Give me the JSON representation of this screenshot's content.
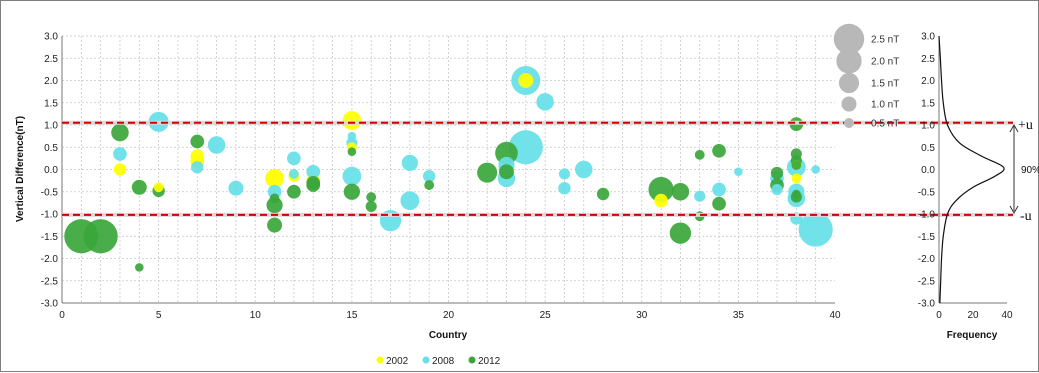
{
  "chart_data": [
    {
      "type": "scatter",
      "xlabel": "Country",
      "ylabel": "Vertical Difference(nT)",
      "xlim": [
        0,
        40
      ],
      "ylim": [
        -3.0,
        3.0
      ],
      "x_ticks": [
        "0",
        "5",
        "10",
        "15",
        "20",
        "25",
        "30",
        "35",
        "40"
      ],
      "y_ticks": [
        "3.0",
        "2.5",
        "2.0",
        "1.5",
        "1.0",
        "0.5",
        "0.0",
        "-0.5",
        "-1.0",
        "-1.5",
        "-2.0",
        "-2.5",
        "-3.0"
      ],
      "grid": true,
      "threshold_lines": [
        1.05,
        -1.02
      ],
      "legend_position": "bottom",
      "size_legend": [
        {
          "label": "2.5 nT",
          "size": 2.5
        },
        {
          "label": "2.0 nT",
          "size": 2.0
        },
        {
          "label": "1.5 nT",
          "size": 1.5
        },
        {
          "label": "1.0 nT",
          "size": 1.0
        },
        {
          "label": "0.5 nT",
          "size": 0.5
        }
      ],
      "series": [
        {
          "name": "2002",
          "color": "#ffff00",
          "points": [
            [
              3,
              0.0,
              0.5
            ],
            [
              5,
              -0.4,
              0.3
            ],
            [
              7,
              0.3,
              0.6
            ],
            [
              7,
              0.18,
              0.6
            ],
            [
              11,
              -0.2,
              1.0
            ],
            [
              11,
              -0.15,
              0.3
            ],
            [
              12,
              -0.15,
              0.4
            ],
            [
              13,
              -0.25,
              0.6
            ],
            [
              15,
              1.1,
              1.0
            ],
            [
              15,
              0.5,
              0.3
            ],
            [
              24,
              2.0,
              0.7
            ],
            [
              31,
              -0.7,
              0.6
            ],
            [
              38,
              0.1,
              0.3
            ],
            [
              38,
              -0.2,
              0.3
            ]
          ]
        },
        {
          "name": "2008",
          "color": "#66e0e8",
          "points": [
            [
              3,
              0.35,
              0.6
            ],
            [
              5,
              1.07,
              1.1
            ],
            [
              7,
              0.05,
              0.5
            ],
            [
              8,
              0.55,
              0.9
            ],
            [
              9,
              -0.42,
              0.7
            ],
            [
              11,
              -0.5,
              0.6
            ],
            [
              12,
              0.25,
              0.6
            ],
            [
              12,
              -0.1,
              0.3
            ],
            [
              13,
              -0.05,
              0.6
            ],
            [
              15,
              -0.15,
              1.0
            ],
            [
              15,
              0.6,
              0.4
            ],
            [
              15,
              0.75,
              0.2
            ],
            [
              17,
              -1.15,
              1.2
            ],
            [
              18,
              0.15,
              0.8
            ],
            [
              18,
              -0.7,
              1.0
            ],
            [
              19,
              -0.15,
              0.5
            ],
            [
              23,
              0.1,
              0.8
            ],
            [
              23,
              -0.2,
              0.9
            ],
            [
              24,
              2.0,
              1.8
            ],
            [
              24,
              0.5,
              2.2
            ],
            [
              25,
              1.52,
              0.9
            ],
            [
              26,
              -0.1,
              0.4
            ],
            [
              26,
              -0.42,
              0.5
            ],
            [
              27,
              0.0,
              0.9
            ],
            [
              33,
              -0.6,
              0.4
            ],
            [
              34,
              -0.45,
              0.6
            ],
            [
              35,
              -0.05,
              0.2
            ],
            [
              37,
              -0.2,
              0.6
            ],
            [
              37,
              -0.45,
              0.4
            ],
            [
              38,
              0.05,
              1.0
            ],
            [
              38,
              -0.5,
              0.8
            ],
            [
              38,
              -0.65,
              0.9
            ],
            [
              38,
              -1.1,
              0.5
            ],
            [
              39,
              0.0,
              0.2
            ],
            [
              39,
              -1.35,
              2.2
            ]
          ]
        },
        {
          "name": "2012",
          "color": "#3aa63a",
          "points": [
            [
              1,
              -1.5,
              2.2
            ],
            [
              2,
              -1.5,
              2.2
            ],
            [
              3,
              0.83,
              0.9
            ],
            [
              4,
              -0.4,
              0.7
            ],
            [
              4,
              -2.2,
              0.2
            ],
            [
              5,
              -0.48,
              0.5
            ],
            [
              7,
              0.63,
              0.6
            ],
            [
              11,
              -0.8,
              0.8
            ],
            [
              11,
              -1.25,
              0.7
            ],
            [
              11,
              -0.65,
              0.3
            ],
            [
              12,
              -0.5,
              0.6
            ],
            [
              13,
              -0.3,
              0.6
            ],
            [
              13,
              -0.35,
              0.6
            ],
            [
              15,
              -0.5,
              0.8
            ],
            [
              15,
              0.4,
              0.2
            ],
            [
              16,
              -0.62,
              0.3
            ],
            [
              16,
              -0.83,
              0.4
            ],
            [
              19,
              -0.35,
              0.3
            ],
            [
              22,
              -0.07,
              1.1
            ],
            [
              23,
              0.37,
              1.3
            ],
            [
              23,
              -0.05,
              0.7
            ],
            [
              28,
              -0.55,
              0.5
            ],
            [
              31,
              -0.45,
              1.5
            ],
            [
              32,
              -0.5,
              0.9
            ],
            [
              32,
              -1.43,
              1.2
            ],
            [
              33,
              0.33,
              0.3
            ],
            [
              33,
              -1.05,
              0.3
            ],
            [
              34,
              0.42,
              0.6
            ],
            [
              34,
              -0.77,
              0.6
            ],
            [
              37,
              -0.08,
              0.5
            ],
            [
              37,
              -0.35,
              0.6
            ],
            [
              38,
              1.02,
              0.6
            ],
            [
              38,
              0.35,
              0.4
            ],
            [
              38,
              0.2,
              0.4
            ],
            [
              38,
              0.1,
              0.3
            ],
            [
              38,
              -0.55,
              0.2
            ],
            [
              38,
              -0.62,
              0.4
            ]
          ]
        }
      ]
    },
    {
      "type": "line",
      "xlabel": "Frequency",
      "xlim": [
        0,
        40
      ],
      "ylim": [
        -3.0,
        3.0
      ],
      "x_ticks": [
        "0",
        "20",
        "40"
      ],
      "y_ticks": [
        "3.0",
        "2.5",
        "2.0",
        "1.5",
        "1.0",
        "0.5",
        "0.0",
        "-0.5",
        "-1.0",
        "-1.5",
        "-2.0",
        "-2.5",
        "-3.0"
      ],
      "grid": false,
      "band_labels": {
        "upper": "+u",
        "lower": "-u",
        "percent": "90%"
      },
      "series": [
        {
          "points": [
            [
              0,
              3.0
            ],
            [
              0.8,
              2.5
            ],
            [
              1.5,
              2.0
            ],
            [
              2.5,
              1.5
            ],
            [
              5,
              1.0
            ],
            [
              12,
              0.6
            ],
            [
              25,
              0.3
            ],
            [
              38,
              0.05
            ],
            [
              33,
              -0.15
            ],
            [
              20,
              -0.4
            ],
            [
              10,
              -0.7
            ],
            [
              5,
              -1.0
            ],
            [
              2.5,
              -1.5
            ],
            [
              1.5,
              -2.0
            ],
            [
              1,
              -2.5
            ],
            [
              0.5,
              -3.0
            ]
          ]
        }
      ]
    }
  ]
}
